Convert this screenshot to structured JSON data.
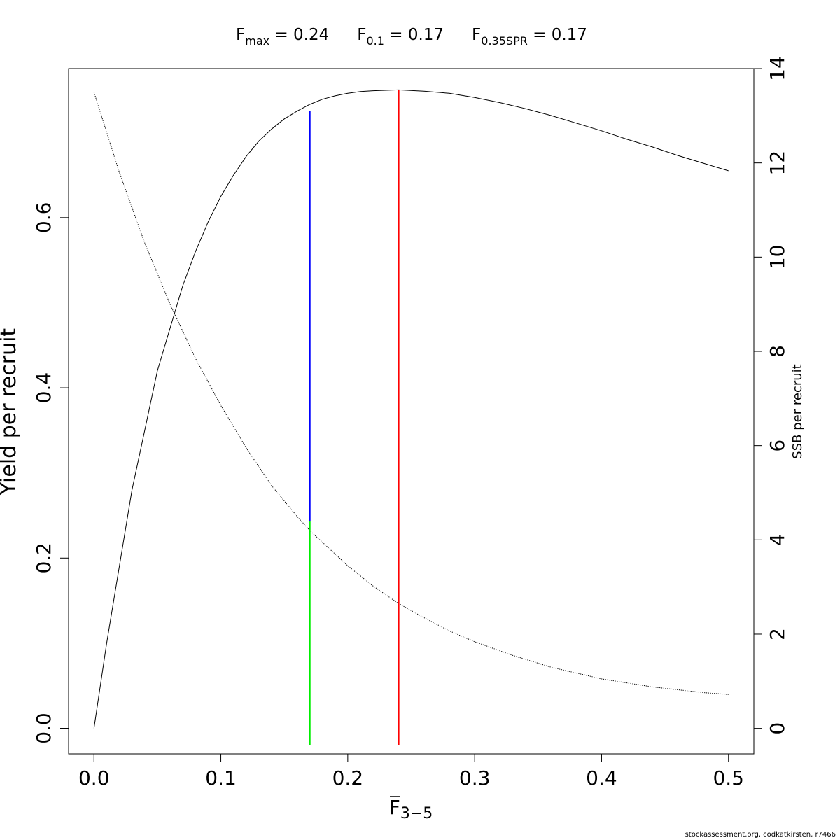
{
  "header": {
    "fmax": {
      "base": "F",
      "sub": "max",
      "value": " = 0.24"
    },
    "f01": {
      "base": "F",
      "sub": "0.1",
      "value": " = 0.17"
    },
    "fspr": {
      "base": "F",
      "sub": "0.35SPR",
      "value": " = 0.17"
    }
  },
  "footer": "stockassessment.org, codkatkirsten, r7466",
  "chart_data": {
    "type": "line",
    "xlabel": {
      "base": "F",
      "sub": "3−5"
    },
    "ylabel_left": "Yield per recruit",
    "ylabel_right": "SSB per recruit",
    "xlim": [
      -0.02,
      0.52
    ],
    "ylim_left": [
      -0.03,
      0.775
    ],
    "ylim_right": [
      -0.54,
      14.0
    ],
    "x_ticks": [
      {
        "value": 0.0,
        "label": "0.0"
      },
      {
        "value": 0.1,
        "label": "0.1"
      },
      {
        "value": 0.2,
        "label": "0.2"
      },
      {
        "value": 0.3,
        "label": "0.3"
      },
      {
        "value": 0.4,
        "label": "0.4"
      },
      {
        "value": 0.5,
        "label": "0.5"
      }
    ],
    "y_left_ticks": [
      {
        "value": 0.0,
        "label": "0.0"
      },
      {
        "value": 0.2,
        "label": "0.2"
      },
      {
        "value": 0.4,
        "label": "0.4"
      },
      {
        "value": 0.6,
        "label": "0.6"
      }
    ],
    "y_right_ticks": [
      {
        "value": 0,
        "label": "0"
      },
      {
        "value": 2,
        "label": "2"
      },
      {
        "value": 4,
        "label": "4"
      },
      {
        "value": 6,
        "label": "6"
      },
      {
        "value": 8,
        "label": "8"
      },
      {
        "value": 10,
        "label": "10"
      },
      {
        "value": 12,
        "label": "12"
      },
      {
        "value": 14,
        "label": "14"
      }
    ],
    "series": [
      {
        "axis": "left",
        "style": "solid",
        "color": "#000000",
        "x": [
          0.0,
          0.01,
          0.02,
          0.03,
          0.04,
          0.05,
          0.06,
          0.07,
          0.08,
          0.09,
          0.1,
          0.11,
          0.12,
          0.13,
          0.14,
          0.15,
          0.16,
          0.17,
          0.18,
          0.19,
          0.2,
          0.21,
          0.22,
          0.23,
          0.24,
          0.26,
          0.28,
          0.3,
          0.32,
          0.34,
          0.36,
          0.38,
          0.4,
          0.42,
          0.44,
          0.46,
          0.48,
          0.5
        ],
        "y": [
          0.0,
          0.1,
          0.19,
          0.28,
          0.35,
          0.42,
          0.47,
          0.52,
          0.56,
          0.595,
          0.625,
          0.65,
          0.672,
          0.69,
          0.704,
          0.716,
          0.725,
          0.733,
          0.739,
          0.743,
          0.746,
          0.748,
          0.749,
          0.7495,
          0.75,
          0.7485,
          0.746,
          0.741,
          0.735,
          0.728,
          0.72,
          0.711,
          0.702,
          0.692,
          0.683,
          0.673,
          0.664,
          0.655
        ]
      },
      {
        "axis": "right",
        "style": "dotted",
        "color": "#000000",
        "x": [
          0.0,
          0.02,
          0.04,
          0.06,
          0.08,
          0.1,
          0.12,
          0.14,
          0.16,
          0.17,
          0.18,
          0.2,
          0.22,
          0.24,
          0.26,
          0.28,
          0.3,
          0.33,
          0.36,
          0.4,
          0.44,
          0.48,
          0.5
        ],
        "y": [
          13.5,
          11.8,
          10.3,
          9.0,
          7.85,
          6.85,
          5.95,
          5.15,
          4.5,
          4.2,
          3.95,
          3.45,
          3.02,
          2.65,
          2.35,
          2.07,
          1.84,
          1.55,
          1.3,
          1.05,
          0.88,
          0.76,
          0.72
        ]
      }
    ],
    "reference_lines": [
      {
        "name": "Fmax",
        "color": "#ff0000",
        "x": 0.24,
        "axis": "left",
        "y_from": -0.02,
        "y_to": 0.75
      },
      {
        "name": "F0.1",
        "color": "#0000ff",
        "x": 0.17,
        "axis": "left",
        "y_from": 0.243,
        "y_to": 0.725
      },
      {
        "name": "F0.35SPR",
        "color": "#00ee00",
        "x": 0.17,
        "axis": "left",
        "y_from": -0.02,
        "y_to": 0.243
      }
    ]
  }
}
